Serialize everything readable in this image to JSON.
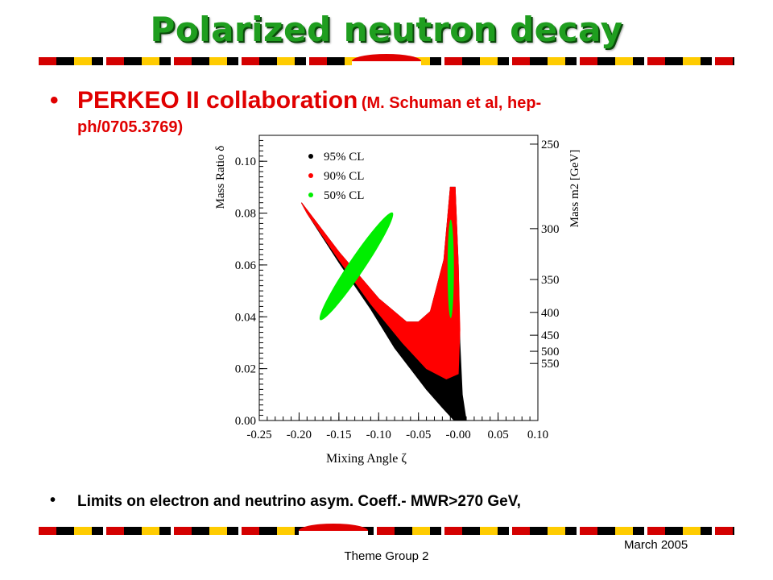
{
  "slide": {
    "title": "Polarized neutron decay",
    "bullet_1": {
      "main": "PERKEO II collaboration",
      "citation_line1": "(M. Schuman et al,  hep-",
      "citation_line2": "ph/0705.3769)"
    },
    "bullet_2": "Limits on electron and neutrino asym. Coeff.- MWR>270 GeV,",
    "footer_center": "Theme Group 2",
    "footer_right": "March 2005",
    "colors": {
      "title": "#1f9e1f",
      "bullet_1": "#e00000",
      "stripe_red": "#d40000",
      "stripe_yellow": "#ffcc00"
    }
  },
  "chart_data": {
    "type": "scatter",
    "xlabel": "Mixing Angle ζ",
    "ylabel": "Mass Ratio δ",
    "y2label": "Mass m2 [GeV]",
    "xlim": [
      -0.25,
      0.1
    ],
    "ylim": [
      0.0,
      0.11
    ],
    "x_ticks": [
      "-0.25",
      "-0.20",
      "-0.15",
      "-0.10",
      "-0.05",
      "-0.00",
      "0.05",
      "0.10"
    ],
    "y_ticks": [
      "0.00",
      "0.02",
      "0.04",
      "0.06",
      "0.08",
      "0.10"
    ],
    "y2_ticks": [
      {
        "label": "250",
        "delta": 0.1066
      },
      {
        "label": "300",
        "delta": 0.074
      },
      {
        "label": "350",
        "delta": 0.0544
      },
      {
        "label": "400",
        "delta": 0.0417
      },
      {
        "label": "450",
        "delta": 0.0329
      },
      {
        "label": "500",
        "delta": 0.0267
      },
      {
        "label": "550",
        "delta": 0.022
      }
    ],
    "legend": {
      "placement": "top-left",
      "entries": [
        {
          "label": "95% CL",
          "color": "#000000"
        },
        {
          "label": "90% CL",
          "color": "#ff0000"
        },
        {
          "label": "50% CL",
          "color": "#00ee00"
        }
      ]
    },
    "regions": [
      {
        "name": "95% CL",
        "color": "#000000",
        "polygon": [
          [
            -0.197,
            0.084
          ],
          [
            -0.15,
            0.065
          ],
          [
            -0.1,
            0.047
          ],
          [
            -0.065,
            0.038
          ],
          [
            -0.05,
            0.038
          ],
          [
            -0.035,
            0.042
          ],
          [
            -0.018,
            0.062
          ],
          [
            -0.01,
            0.09
          ],
          [
            -0.004,
            0.09
          ],
          [
            0.0,
            0.06
          ],
          [
            0.002,
            0.03
          ],
          [
            0.005,
            0.01
          ],
          [
            0.01,
            0.0
          ],
          [
            -0.005,
            0.0
          ],
          [
            -0.02,
            0.005
          ],
          [
            -0.04,
            0.012
          ],
          [
            -0.08,
            0.028
          ],
          [
            -0.11,
            0.043
          ],
          [
            -0.15,
            0.061
          ],
          [
            -0.19,
            0.08
          ]
        ]
      },
      {
        "name": "90% CL",
        "color": "#ff0000",
        "polygon": [
          [
            -0.197,
            0.084
          ],
          [
            -0.15,
            0.065
          ],
          [
            -0.1,
            0.047
          ],
          [
            -0.065,
            0.038
          ],
          [
            -0.05,
            0.038
          ],
          [
            -0.035,
            0.042
          ],
          [
            -0.018,
            0.062
          ],
          [
            -0.01,
            0.09
          ],
          [
            -0.004,
            0.09
          ],
          [
            0.0,
            0.06
          ],
          [
            0.002,
            0.035
          ],
          [
            0.0,
            0.018
          ],
          [
            -0.015,
            0.016
          ],
          [
            -0.04,
            0.02
          ],
          [
            -0.07,
            0.03
          ],
          [
            -0.11,
            0.045
          ],
          [
            -0.15,
            0.062
          ],
          [
            -0.19,
            0.08
          ]
        ]
      }
    ],
    "ellipses": [
      {
        "name": "50% CL left",
        "color": "#00ee00",
        "cx": -0.128,
        "cy": 0.0595,
        "rx": 0.01,
        "ry": 0.025,
        "angle_deg": 34
      },
      {
        "name": "50% CL right",
        "color": "#00ee00",
        "cx": -0.0095,
        "cy": 0.0585,
        "rx": 0.004,
        "ry": 0.019,
        "angle_deg": 0
      }
    ]
  }
}
